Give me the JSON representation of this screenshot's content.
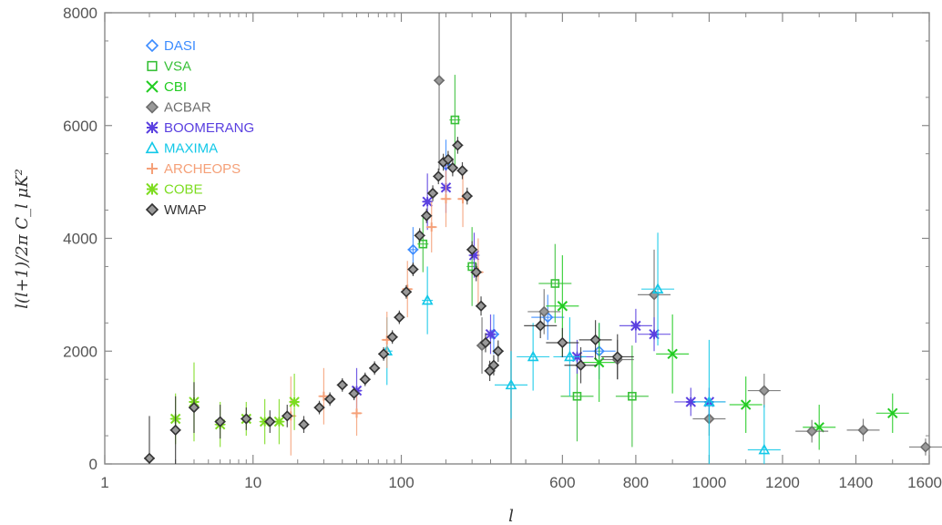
{
  "chart_data": {
    "type": "scatter",
    "xlabel": "l",
    "ylabel": "l(l+1)/2π C_l μK²",
    "ylim": [
      0,
      8000
    ],
    "y_ticks": [
      "0",
      "2000",
      "4000",
      "6000",
      "8000"
    ],
    "x_axis": {
      "left_panel": {
        "scale": "log",
        "range": [
          1,
          550
        ],
        "ticks": [
          "1",
          "10",
          "100"
        ]
      },
      "right_panel": {
        "scale": "linear",
        "range": [
          460,
          1600
        ],
        "ticks": [
          "600",
          "800",
          "1000",
          "1200",
          "1400",
          "1600"
        ]
      }
    },
    "legend_placement": "top-left",
    "grid": false,
    "series": [
      {
        "name": "DASI",
        "marker": "diamond",
        "color": "#3c8cff",
        "points": [
          {
            "x": 120,
            "y": 3800,
            "err": 400
          },
          {
            "x": 200,
            "y": 5300,
            "err": 450
          },
          {
            "x": 420,
            "y": 2300,
            "err": 350
          },
          {
            "x": 560,
            "y": 2600,
            "err": 400
          },
          {
            "x": 700,
            "y": 2000,
            "err": 500
          }
        ]
      },
      {
        "name": "VSA",
        "marker": "square",
        "color": "#38c038",
        "points": [
          {
            "x": 140,
            "y": 3900,
            "err": 500
          },
          {
            "x": 230,
            "y": 6100,
            "err": 800
          },
          {
            "x": 300,
            "y": 3500,
            "err": 700
          },
          {
            "x": 580,
            "y": 3200,
            "err": 700
          },
          {
            "x": 640,
            "y": 1200,
            "err": 800
          },
          {
            "x": 790,
            "y": 1200,
            "err": 900
          }
        ]
      },
      {
        "name": "CBI",
        "marker": "x",
        "color": "#22cc22",
        "points": [
          {
            "x": 600,
            "y": 2800,
            "err": 900
          },
          {
            "x": 700,
            "y": 1800,
            "err": 700
          },
          {
            "x": 900,
            "y": 1950,
            "err": 700
          },
          {
            "x": 1100,
            "y": 1050,
            "err": 500
          },
          {
            "x": 1300,
            "y": 650,
            "err": 400
          },
          {
            "x": 1500,
            "y": 900,
            "err": 350
          }
        ]
      },
      {
        "name": "ACBAR",
        "marker": "diamond",
        "color": "#6e6e6e",
        "points": [
          {
            "x": 180,
            "y": 6800,
            "err": 1600
          },
          {
            "x": 350,
            "y": 2100,
            "err": 500
          },
          {
            "x": 550,
            "y": 2700,
            "err": 400
          },
          {
            "x": 750,
            "y": 1850,
            "err": 350
          },
          {
            "x": 850,
            "y": 3000,
            "err": 800
          },
          {
            "x": 1000,
            "y": 800,
            "err": 300
          },
          {
            "x": 1150,
            "y": 1300,
            "err": 300
          },
          {
            "x": 1280,
            "y": 580,
            "err": 200
          },
          {
            "x": 1420,
            "y": 600,
            "err": 200
          },
          {
            "x": 1590,
            "y": 300,
            "err": 150
          }
        ]
      },
      {
        "name": "BOOMERANG",
        "marker": "asterisk",
        "color": "#5a40e0",
        "points": [
          {
            "x": 50,
            "y": 1300,
            "err": 400
          },
          {
            "x": 150,
            "y": 4650,
            "err": 500
          },
          {
            "x": 200,
            "y": 4900,
            "err": 450
          },
          {
            "x": 310,
            "y": 3700,
            "err": 400
          },
          {
            "x": 400,
            "y": 2300,
            "err": 350
          },
          {
            "x": 640,
            "y": 1900,
            "err": 300
          },
          {
            "x": 800,
            "y": 2450,
            "err": 300
          },
          {
            "x": 850,
            "y": 2300,
            "err": 300
          },
          {
            "x": 950,
            "y": 1100,
            "err": 250
          },
          {
            "x": 1000,
            "y": 1100,
            "err": 250
          }
        ]
      },
      {
        "name": "MAXIMA",
        "marker": "triangle",
        "color": "#12c8e8",
        "points": [
          {
            "x": 80,
            "y": 2000,
            "err": 600
          },
          {
            "x": 150,
            "y": 2900,
            "err": 600
          },
          {
            "x": 460,
            "y": 1400,
            "err": 600
          },
          {
            "x": 520,
            "y": 1900,
            "err": 600
          },
          {
            "x": 620,
            "y": 1900,
            "err": 700
          },
          {
            "x": 860,
            "y": 3100,
            "err": 1000
          },
          {
            "x": 1000,
            "y": 1100,
            "err": 1100
          },
          {
            "x": 1150,
            "y": 250,
            "err": 800
          }
        ]
      },
      {
        "name": "ARCHEOPS",
        "marker": "plus",
        "color": "#f5a078",
        "points": [
          {
            "x": 18,
            "y": 850,
            "err": 700
          },
          {
            "x": 30,
            "y": 1200,
            "err": 500
          },
          {
            "x": 50,
            "y": 900,
            "err": 400
          },
          {
            "x": 80,
            "y": 2200,
            "err": 500
          },
          {
            "x": 110,
            "y": 3100,
            "err": 500
          },
          {
            "x": 160,
            "y": 4200,
            "err": 450
          },
          {
            "x": 200,
            "y": 4700,
            "err": 500
          },
          {
            "x": 260,
            "y": 4700,
            "err": 500
          },
          {
            "x": 330,
            "y": 3400,
            "err": 600
          }
        ]
      },
      {
        "name": "COBE",
        "marker": "asterisk",
        "color": "#7ddc20",
        "points": [
          {
            "x": 3,
            "y": 800,
            "err": 450
          },
          {
            "x": 4,
            "y": 1100,
            "err": 700
          },
          {
            "x": 6,
            "y": 700,
            "err": 400
          },
          {
            "x": 9,
            "y": 800,
            "err": 300
          },
          {
            "x": 12,
            "y": 750,
            "err": 400
          },
          {
            "x": 15,
            "y": 750,
            "err": 400
          },
          {
            "x": 19,
            "y": 1100,
            "err": 500
          }
        ]
      },
      {
        "name": "WMAP",
        "marker": "diamond",
        "color": "#333333",
        "points": [
          {
            "x": 2,
            "y": 100,
            "err": 750
          },
          {
            "x": 3,
            "y": 600,
            "err": 600
          },
          {
            "x": 4,
            "y": 1000,
            "err": 450
          },
          {
            "x": 6,
            "y": 750,
            "err": 300
          },
          {
            "x": 9,
            "y": 800,
            "err": 200
          },
          {
            "x": 13,
            "y": 750,
            "err": 200
          },
          {
            "x": 17,
            "y": 850,
            "err": 200
          },
          {
            "x": 22,
            "y": 700,
            "err": 150
          },
          {
            "x": 28,
            "y": 1000,
            "err": 120
          },
          {
            "x": 33,
            "y": 1150,
            "err": 120
          },
          {
            "x": 40,
            "y": 1400,
            "err": 120
          },
          {
            "x": 48,
            "y": 1250,
            "err": 120
          },
          {
            "x": 57,
            "y": 1500,
            "err": 120
          },
          {
            "x": 66,
            "y": 1700,
            "err": 120
          },
          {
            "x": 76,
            "y": 1950,
            "err": 120
          },
          {
            "x": 87,
            "y": 2250,
            "err": 120
          },
          {
            "x": 97,
            "y": 2600,
            "err": 120
          },
          {
            "x": 108,
            "y": 3050,
            "err": 120
          },
          {
            "x": 120,
            "y": 3450,
            "err": 120
          },
          {
            "x": 133,
            "y": 4050,
            "err": 130
          },
          {
            "x": 148,
            "y": 4400,
            "err": 130
          },
          {
            "x": 163,
            "y": 4800,
            "err": 140
          },
          {
            "x": 178,
            "y": 5100,
            "err": 140
          },
          {
            "x": 192,
            "y": 5350,
            "err": 150
          },
          {
            "x": 207,
            "y": 5400,
            "err": 150
          },
          {
            "x": 222,
            "y": 5250,
            "err": 150
          },
          {
            "x": 240,
            "y": 5650,
            "err": 150
          },
          {
            "x": 258,
            "y": 5200,
            "err": 150
          },
          {
            "x": 278,
            "y": 4750,
            "err": 150
          },
          {
            "x": 300,
            "y": 3800,
            "err": 150
          },
          {
            "x": 320,
            "y": 3400,
            "err": 160
          },
          {
            "x": 345,
            "y": 2800,
            "err": 170
          },
          {
            "x": 370,
            "y": 2150,
            "err": 170
          },
          {
            "x": 395,
            "y": 1650,
            "err": 180
          },
          {
            "x": 420,
            "y": 1750,
            "err": 180
          },
          {
            "x": 450,
            "y": 2000,
            "err": 190
          },
          {
            "x": 540,
            "y": 2450,
            "err": 220
          },
          {
            "x": 600,
            "y": 2150,
            "err": 260
          },
          {
            "x": 650,
            "y": 1750,
            "err": 320
          },
          {
            "x": 690,
            "y": 2200,
            "err": 350
          },
          {
            "x": 750,
            "y": 1900,
            "err": 400
          }
        ]
      }
    ]
  }
}
